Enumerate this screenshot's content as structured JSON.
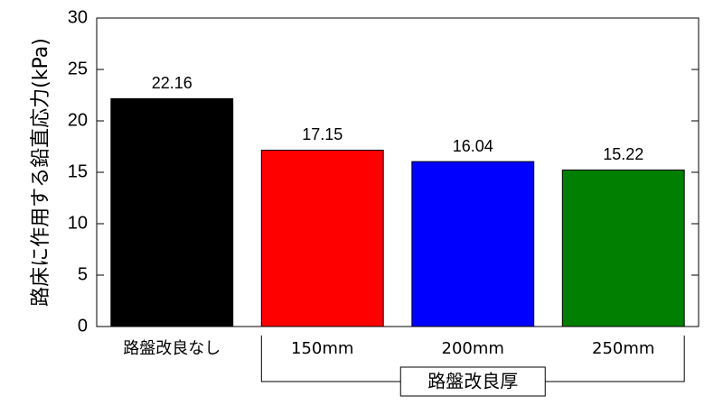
{
  "chart_data": {
    "type": "bar",
    "y_label": "路床に作用する鉛直応力(kPa)",
    "categories": [
      "路盤改良なし",
      "150mm",
      "200mm",
      "250mm"
    ],
    "group_label": "路盤改良厚",
    "series": [
      {
        "colors": [
          "#000000",
          "#ff0000",
          "#0000ff",
          "#007f00"
        ],
        "values": [
          22.16,
          17.15,
          16.04,
          15.22
        ]
      }
    ],
    "ylim": [
      0,
      30
    ],
    "yticks": [
      0,
      5,
      10,
      15,
      20,
      25,
      30
    ],
    "grid": false,
    "value_labels_shown": true
  }
}
